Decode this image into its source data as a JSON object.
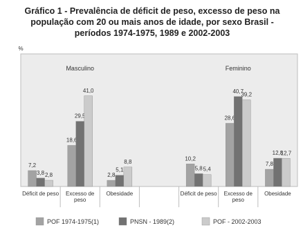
{
  "chart_data": {
    "type": "bar",
    "title": "Gráfico 1 - Prevalência de déficit de peso, excesso de peso na população com 20 ou mais anos de idade, por sexo Brasil - períodos 1974-1975, 1989 e 2002-2003",
    "y_label": "%",
    "annotations": [
      "Masculino",
      "Feminino"
    ],
    "categories": [
      "Déficit de peso",
      "Excesso de peso",
      "Obesidade",
      null,
      "Déficit de peso",
      "Excesso de peso",
      "Obesidade"
    ],
    "series": [
      {
        "name": "POF 1974-1975(1)",
        "color": "#a3a3a3",
        "values": [
          7.2,
          18.6,
          2.8,
          null,
          10.2,
          28.6,
          7.8
        ],
        "value_labels": [
          "7,2",
          "18,6",
          "2,8",
          null,
          "10,2",
          "28,6",
          "7,8"
        ]
      },
      {
        "name": "PNSN - 1989(2)",
        "color": "#727272",
        "values": [
          3.8,
          29.5,
          5.1,
          null,
          5.8,
          40.7,
          12.8
        ],
        "value_labels": [
          "3,8",
          "29,5",
          "5,1",
          null,
          "5,8",
          "40,7",
          "12,8"
        ]
      },
      {
        "name": "POF - 2002-2003",
        "color": "#cbcbcb",
        "values": [
          2.8,
          41.0,
          8.8,
          null,
          5.4,
          39.2,
          12.7
        ],
        "value_labels": [
          "2,8",
          "41,0",
          "8,8",
          null,
          "5,4",
          "39,2",
          "12,7"
        ]
      }
    ],
    "ylim": [
      0,
      60
    ]
  }
}
